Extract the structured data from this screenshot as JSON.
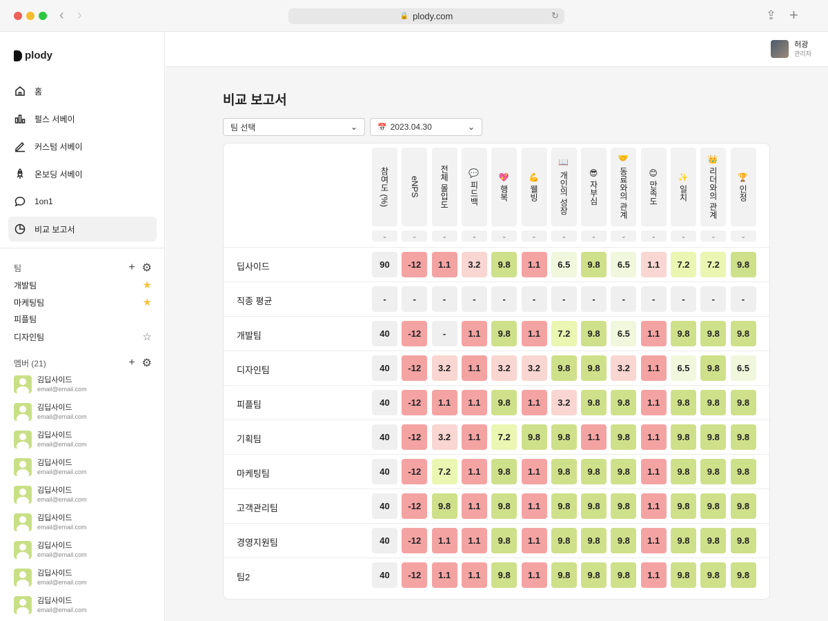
{
  "browser": {
    "url": "plody.com"
  },
  "brand": {
    "name": "plody"
  },
  "nav": [
    {
      "label": "홈",
      "icon": "home-icon"
    },
    {
      "label": "펄스 서베이",
      "icon": "bar-chart-icon"
    },
    {
      "label": "커스텀 서베이",
      "icon": "pen-icon"
    },
    {
      "label": "온보딩 서베이",
      "icon": "rocket-icon"
    },
    {
      "label": "1on1",
      "icon": "chat-bubble-icon"
    },
    {
      "label": "비교 보고서",
      "icon": "pie-chart-icon",
      "active": true
    }
  ],
  "teams": {
    "title": "팀",
    "items": [
      {
        "name": "개발팀",
        "starred": true
      },
      {
        "name": "마케팅팀",
        "starred": true
      },
      {
        "name": "피플팀",
        "starred": false,
        "show_star": false
      },
      {
        "name": "디자인팀",
        "starred": false,
        "show_star": true
      }
    ]
  },
  "members": {
    "title": "멤버 (21)",
    "items": [
      {
        "name": "김딥사이드",
        "email": "email@email.com"
      },
      {
        "name": "김딥사이드",
        "email": "email@email.com"
      },
      {
        "name": "김딥사이드",
        "email": "email@email.com"
      },
      {
        "name": "김딥사이드",
        "email": "email@email.com"
      },
      {
        "name": "김딥사이드",
        "email": "email@email.com"
      },
      {
        "name": "김딥사이드",
        "email": "email@email.com"
      },
      {
        "name": "김딥사이드",
        "email": "email@email.com"
      },
      {
        "name": "김딥사이드",
        "email": "email@email.com"
      },
      {
        "name": "김딥사이드",
        "email": "email@email.com"
      }
    ]
  },
  "user": {
    "name": "허광",
    "role": "관리자"
  },
  "page": {
    "title": "비교 보고서",
    "team_select": "팀 선택",
    "date_select": "2023.04.30"
  },
  "columns": [
    "참여도 (%)",
    "eNPS",
    "전체 몰입도",
    "💬 피드백",
    "💖 행복",
    "💪 웰빙",
    "📖 개인의 성장",
    "😎 자부심",
    "🤝 동료와의 관계",
    "😊 만족도",
    "✨ 일치",
    "👑 리더와의 관계",
    "🏆 인정"
  ],
  "colors": {
    "grey": "#efefef",
    "red": "#f4a3a3",
    "pink": "#f9d6d1",
    "pale": "#f1f7dc",
    "yellow": "#eaf6b1",
    "green": "#cfe08a"
  },
  "rows": [
    {
      "name": "딥사이드",
      "cells": [
        [
          "90",
          "grey"
        ],
        [
          "-12",
          "red"
        ],
        [
          "1.1",
          "red"
        ],
        [
          "3.2",
          "pink"
        ],
        [
          "9.8",
          "green"
        ],
        [
          "1.1",
          "red"
        ],
        [
          "6.5",
          "pale"
        ],
        [
          "9.8",
          "green"
        ],
        [
          "6.5",
          "pale"
        ],
        [
          "1.1",
          "pink"
        ],
        [
          "7.2",
          "yellow"
        ],
        [
          "7.2",
          "yellow"
        ],
        [
          "9.8",
          "green"
        ]
      ]
    },
    {
      "name": "직종 평균",
      "cells": [
        [
          "-",
          "grey"
        ],
        [
          "-",
          "grey"
        ],
        [
          "-",
          "grey"
        ],
        [
          "-",
          "grey"
        ],
        [
          "-",
          "grey"
        ],
        [
          "-",
          "grey"
        ],
        [
          "-",
          "grey"
        ],
        [
          "-",
          "grey"
        ],
        [
          "-",
          "grey"
        ],
        [
          "-",
          "grey"
        ],
        [
          "-",
          "grey"
        ],
        [
          "-",
          "grey"
        ],
        [
          "-",
          "grey"
        ]
      ]
    },
    {
      "name": "개발팀",
      "cells": [
        [
          "40",
          "grey"
        ],
        [
          "-12",
          "red"
        ],
        [
          "-",
          "grey"
        ],
        [
          "1.1",
          "red"
        ],
        [
          "9.8",
          "green"
        ],
        [
          "1.1",
          "red"
        ],
        [
          "7.2",
          "yellow"
        ],
        [
          "9.8",
          "green"
        ],
        [
          "6.5",
          "pale"
        ],
        [
          "1.1",
          "red"
        ],
        [
          "9.8",
          "green"
        ],
        [
          "9.8",
          "green"
        ],
        [
          "9.8",
          "green"
        ]
      ]
    },
    {
      "name": "디자인팀",
      "cells": [
        [
          "40",
          "grey"
        ],
        [
          "-12",
          "red"
        ],
        [
          "3.2",
          "pink"
        ],
        [
          "1.1",
          "red"
        ],
        [
          "3.2",
          "pink"
        ],
        [
          "3.2",
          "pink"
        ],
        [
          "9.8",
          "green"
        ],
        [
          "9.8",
          "green"
        ],
        [
          "3.2",
          "pink"
        ],
        [
          "1.1",
          "red"
        ],
        [
          "6.5",
          "pale"
        ],
        [
          "9.8",
          "green"
        ],
        [
          "6.5",
          "pale"
        ]
      ]
    },
    {
      "name": "피플팀",
      "cells": [
        [
          "40",
          "grey"
        ],
        [
          "-12",
          "red"
        ],
        [
          "1.1",
          "red"
        ],
        [
          "1.1",
          "red"
        ],
        [
          "9.8",
          "green"
        ],
        [
          "1.1",
          "red"
        ],
        [
          "3.2",
          "pink"
        ],
        [
          "9.8",
          "green"
        ],
        [
          "9.8",
          "green"
        ],
        [
          "1.1",
          "red"
        ],
        [
          "9.8",
          "green"
        ],
        [
          "9.8",
          "green"
        ],
        [
          "9.8",
          "green"
        ]
      ]
    },
    {
      "name": "기획팀",
      "cells": [
        [
          "40",
          "grey"
        ],
        [
          "-12",
          "red"
        ],
        [
          "3.2",
          "pink"
        ],
        [
          "1.1",
          "red"
        ],
        [
          "7.2",
          "yellow"
        ],
        [
          "9.8",
          "green"
        ],
        [
          "9.8",
          "green"
        ],
        [
          "1.1",
          "red"
        ],
        [
          "9.8",
          "green"
        ],
        [
          "1.1",
          "red"
        ],
        [
          "9.8",
          "green"
        ],
        [
          "9.8",
          "green"
        ],
        [
          "9.8",
          "green"
        ]
      ]
    },
    {
      "name": "마케팅팀",
      "cells": [
        [
          "40",
          "grey"
        ],
        [
          "-12",
          "red"
        ],
        [
          "7.2",
          "yellow"
        ],
        [
          "1.1",
          "red"
        ],
        [
          "9.8",
          "green"
        ],
        [
          "1.1",
          "red"
        ],
        [
          "9.8",
          "green"
        ],
        [
          "9.8",
          "green"
        ],
        [
          "9.8",
          "green"
        ],
        [
          "1.1",
          "red"
        ],
        [
          "9.8",
          "green"
        ],
        [
          "9.8",
          "green"
        ],
        [
          "9.8",
          "green"
        ]
      ]
    },
    {
      "name": "고객관리팀",
      "cells": [
        [
          "40",
          "grey"
        ],
        [
          "-12",
          "red"
        ],
        [
          "9.8",
          "green"
        ],
        [
          "1.1",
          "red"
        ],
        [
          "9.8",
          "green"
        ],
        [
          "1.1",
          "red"
        ],
        [
          "9.8",
          "green"
        ],
        [
          "9.8",
          "green"
        ],
        [
          "9.8",
          "green"
        ],
        [
          "1.1",
          "red"
        ],
        [
          "9.8",
          "green"
        ],
        [
          "9.8",
          "green"
        ],
        [
          "9.8",
          "green"
        ]
      ]
    },
    {
      "name": "경영지원팀",
      "cells": [
        [
          "40",
          "grey"
        ],
        [
          "-12",
          "red"
        ],
        [
          "1.1",
          "red"
        ],
        [
          "1.1",
          "red"
        ],
        [
          "9.8",
          "green"
        ],
        [
          "1.1",
          "red"
        ],
        [
          "9.8",
          "green"
        ],
        [
          "9.8",
          "green"
        ],
        [
          "9.8",
          "green"
        ],
        [
          "1.1",
          "red"
        ],
        [
          "9.8",
          "green"
        ],
        [
          "9.8",
          "green"
        ],
        [
          "9.8",
          "green"
        ]
      ]
    },
    {
      "name": "팀2",
      "cells": [
        [
          "40",
          "grey"
        ],
        [
          "-12",
          "red"
        ],
        [
          "1.1",
          "red"
        ],
        [
          "1.1",
          "red"
        ],
        [
          "9.8",
          "green"
        ],
        [
          "1.1",
          "red"
        ],
        [
          "9.8",
          "green"
        ],
        [
          "9.8",
          "green"
        ],
        [
          "9.8",
          "green"
        ],
        [
          "1.1",
          "red"
        ],
        [
          "9.8",
          "green"
        ],
        [
          "9.8",
          "green"
        ],
        [
          "9.8",
          "green"
        ]
      ]
    }
  ]
}
